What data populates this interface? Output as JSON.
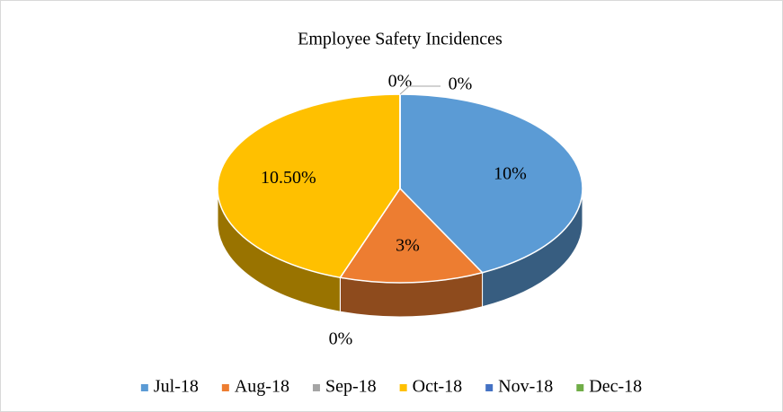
{
  "chart_data": {
    "type": "pie",
    "title": "Employee Safety Incidences",
    "categories": [
      "Jul-18",
      "Aug-18",
      "Sep-18",
      "Oct-18",
      "Nov-18",
      "Dec-18"
    ],
    "values": [
      10,
      3,
      0,
      10.5,
      0,
      0
    ],
    "value_labels": [
      "10%",
      "3%",
      "0%",
      "10.50%",
      "0%",
      "0%"
    ],
    "colors": [
      "#5b9bd5",
      "#ed7d31",
      "#a5a5a5",
      "#ffc000",
      "#4472c4",
      "#70ad47"
    ],
    "legend": "bottom"
  }
}
